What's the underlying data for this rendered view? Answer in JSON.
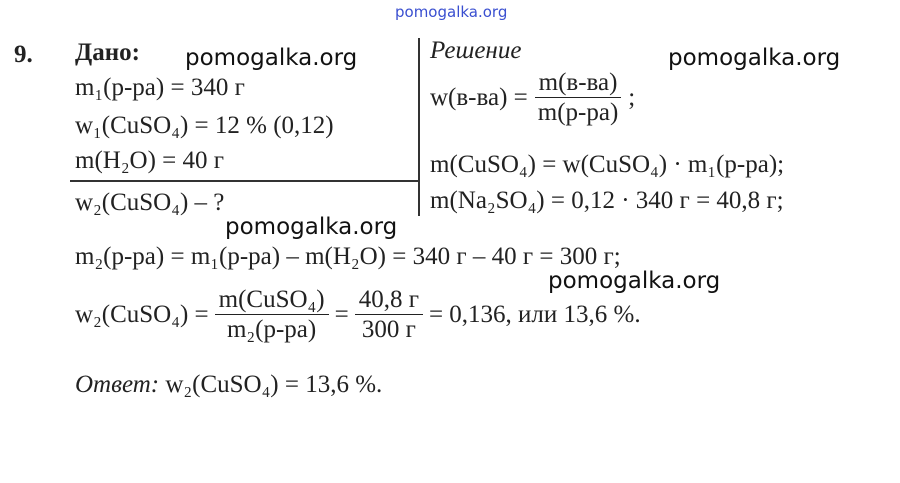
{
  "watermark_top": "pomogalka.org",
  "watermarks": [
    "pomogalka.org",
    "pomogalka.org",
    "pomogalka.org",
    "pomogalka.org"
  ],
  "problem_number": "9.",
  "given": {
    "title": "Дано:",
    "lines": [
      "m₁(р-ра) = 340 г",
      "w₁(CuSO₄) = 12 % (0,12)",
      "m(H₂O) = 40 г"
    ],
    "find": "w₂(CuSO₄) – ?"
  },
  "solution": {
    "title": "Решение",
    "formula": {
      "lhs": "w(в-ва) =",
      "numerator": "m(в-ва)",
      "denominator": "m(р-ра)",
      "end": ";"
    },
    "lines": [
      "m(CuSO₄) = w(CuSO₄) · m₁(р-ра);",
      "m(Na₂SO₄) = 0,12 · 340 г = 40,8 г;"
    ]
  },
  "calc_line": "m₂(р-ра) = m₁(р-ра) – m(H₂O) = 340 г – 40 г = 300 г;",
  "final": {
    "lhs": "w₂(CuSO₄) =",
    "frac1": {
      "numerator": "m(CuSO₄)",
      "denominator": "m₂(р-ра)"
    },
    "eq": "=",
    "frac2": {
      "numerator": "40,8 г",
      "denominator": "300 г"
    },
    "result": "= 0,136,  или 13,6 %."
  },
  "answer": {
    "label": "Ответ:",
    "text": "w₂(CuSO₄) = 13,6 %."
  }
}
